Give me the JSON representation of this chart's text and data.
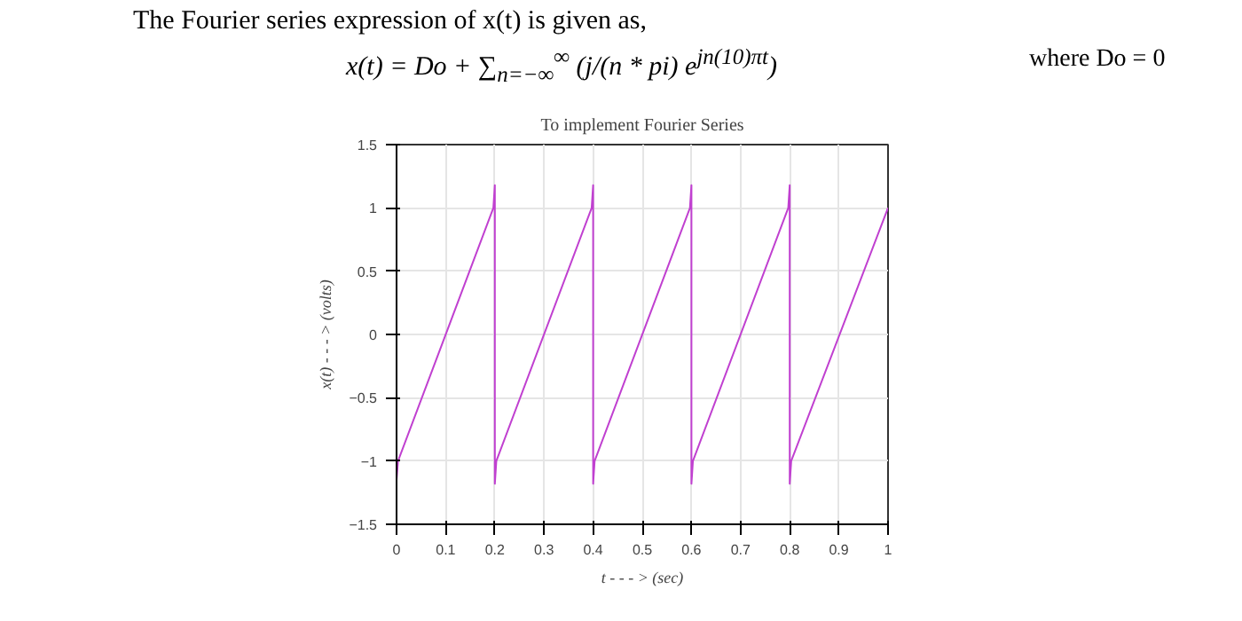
{
  "chart_data": {
    "type": "line",
    "title": "To implement Fourier Series",
    "xlabel": "t - - - > (sec)",
    "ylabel": "x(t) - - - > (volts)",
    "annotations": [
      "The Fourier series expression of x(t) is given as,",
      "x(t) = Do + ∑$_{n=−∞}$$^{∞}$ (j/(n * pi) e$^{jn(10)πt}$)",
      "where Do = 0"
    ],
    "xlim": [
      0,
      1
    ],
    "ylim": [
      -1.5,
      1.5
    ],
    "xticks": [
      0,
      0.1,
      0.2,
      0.3,
      0.4,
      0.5,
      0.6,
      0.7,
      0.8,
      0.9,
      1
    ],
    "yticks": [
      -1.5,
      -1,
      -0.5,
      0,
      0.5,
      1,
      1.5
    ],
    "grid": true,
    "line_style": "solid",
    "series": [
      {
        "color": "#c040d0",
        "x": [
          0,
          0,
          0.003,
          0.197,
          0.2,
          0.2,
          0.203,
          0.397,
          0.4,
          0.4,
          0.403,
          0.597,
          0.6,
          0.6,
          0.603,
          0.797,
          0.8,
          0.8,
          0.803,
          1
        ],
        "values": [
          -0.95,
          -1.15,
          -1,
          1,
          1.18,
          -1.18,
          -1,
          1,
          1.18,
          -1.18,
          -1,
          1,
          1.18,
          -1.18,
          -1,
          1,
          1.18,
          -1.18,
          -1,
          1
        ]
      }
    ]
  }
}
